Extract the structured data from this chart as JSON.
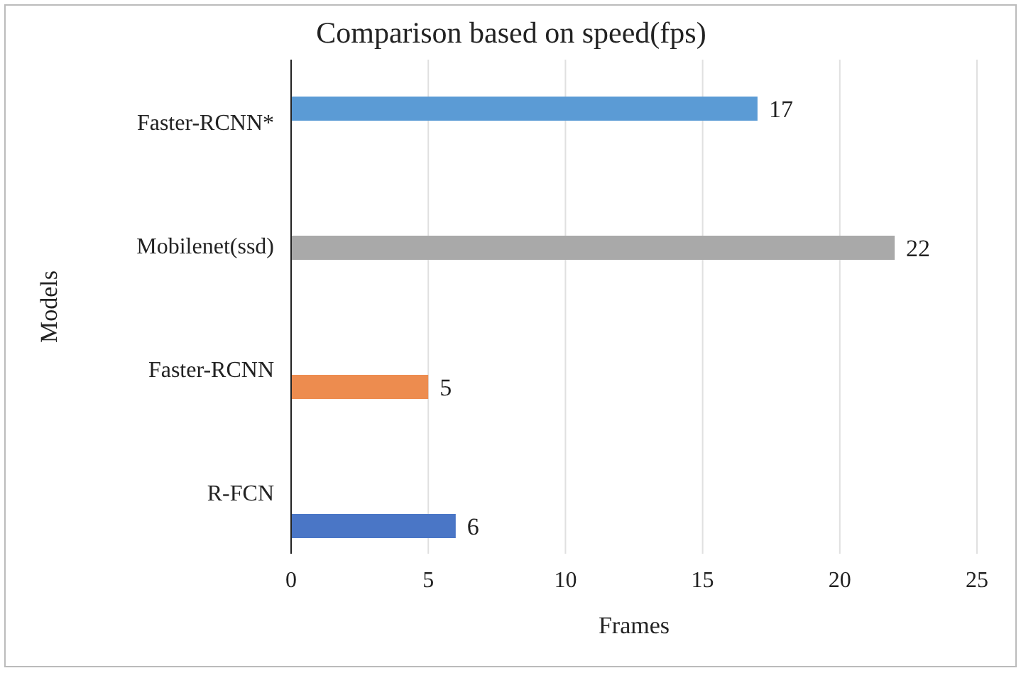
{
  "chart_data": {
    "type": "bar",
    "orientation": "horizontal",
    "title": "Comparison based on speed(fps)",
    "xlabel": "Frames",
    "ylabel": "Models",
    "categories": [
      "Faster-RCNN*",
      "Mobilenet(ssd)",
      "Faster-RCNN",
      "R-FCN"
    ],
    "series": [
      {
        "color": "#4a76c6",
        "values": [
          null,
          null,
          null,
          6
        ]
      },
      {
        "color": "#ed8c4f",
        "values": [
          null,
          null,
          5,
          null
        ]
      },
      {
        "color": "#a9a9a9",
        "values": [
          null,
          22,
          null,
          null
        ]
      },
      {
        "color": "#5b9bd5",
        "values": [
          17,
          null,
          null,
          null
        ]
      }
    ],
    "xlim": [
      0,
      25
    ],
    "xticks": [
      0,
      5,
      10,
      15,
      20,
      25
    ],
    "grid": "x",
    "data_labels": true
  }
}
